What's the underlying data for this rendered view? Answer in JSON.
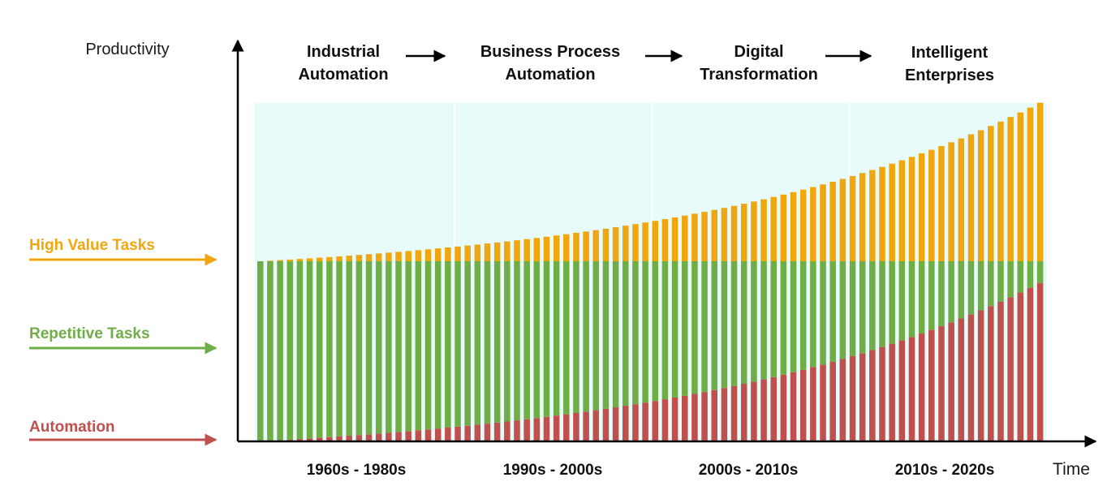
{
  "chart_data": {
    "type": "bar",
    "stacked": true,
    "ylabel": "Productivity",
    "xlabel": "Time",
    "bar_count": 80,
    "background_color": "#e7fbfb",
    "eras": [
      "Industrial Automation",
      "Business Process Automation",
      "Digital Transformation",
      "Intelligent Enterprises"
    ],
    "periods": [
      "1960s - 1980s",
      "1990s - 2000s",
      "2000s - 2010s",
      "2010s - 2020s"
    ],
    "series": [
      {
        "name": "Automation",
        "color": "#c0504d",
        "start": 0.0,
        "end": 0.88,
        "growth": 2.2
      },
      {
        "name": "Repetitive Tasks",
        "color": "#70ad47",
        "level": 1.0
      },
      {
        "name": "High Value Tasks",
        "color": "#f0a70f",
        "start": 1.0,
        "end": 1.88,
        "growth": 2.2
      }
    ],
    "legend": [
      {
        "name": "High Value Tasks",
        "color": "#f0a70f"
      },
      {
        "name": "Repetitive Tasks",
        "color": "#70ad47"
      },
      {
        "name": "Automation",
        "color": "#c0504d"
      }
    ]
  }
}
